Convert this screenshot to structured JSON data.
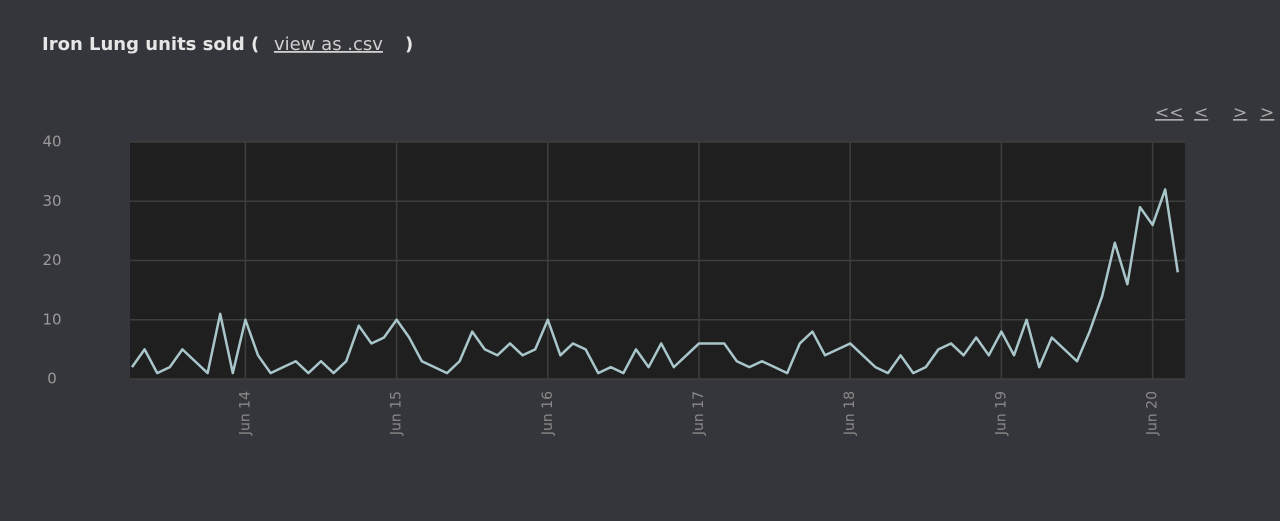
{
  "chart_data": {
    "type": "line",
    "title": "Iron Lung units sold (",
    "title_link": "view as .csv",
    "title_end": ")",
    "nav": [
      "<<",
      "<",
      ">",
      ">"
    ],
    "categories": [
      null,
      null,
      null,
      null,
      null,
      null,
      null,
      null,
      null,
      "Jun 14",
      null,
      null,
      null,
      null,
      null,
      null,
      null,
      null,
      null,
      null,
      null,
      "Jun 15",
      null,
      null,
      null,
      null,
      null,
      null,
      null,
      null,
      null,
      null,
      null,
      "Jun 16",
      null,
      null,
      null,
      null,
      null,
      null,
      null,
      null,
      null,
      null,
      null,
      "Jun 17",
      null,
      null,
      null,
      null,
      null,
      null,
      null,
      null,
      null,
      null,
      null,
      "Jun 18",
      null,
      null,
      null,
      null,
      null,
      null,
      null,
      null,
      null,
      null,
      null,
      "Jun 19",
      null,
      null,
      null,
      null,
      null,
      null,
      null,
      null,
      null,
      null,
      null,
      "Jun 20",
      null,
      null
    ],
    "series": [
      {
        "name": "units sold",
        "color": "#a9c6cb",
        "values": [
          2,
          5,
          1,
          2,
          5,
          3,
          1,
          11,
          1,
          10,
          4,
          1,
          2,
          3,
          1,
          3,
          1,
          3,
          9,
          6,
          7,
          10,
          7,
          3,
          2,
          1,
          3,
          8,
          5,
          4,
          6,
          4,
          5,
          10,
          4,
          6,
          5,
          1,
          2,
          1,
          5,
          2,
          6,
          2,
          4,
          6,
          6,
          6,
          3,
          2,
          3,
          2,
          1,
          6,
          8,
          4,
          5,
          6,
          4,
          2,
          1,
          4,
          1,
          2,
          5,
          6,
          4,
          7,
          4,
          8,
          4,
          10,
          2,
          7,
          5,
          3,
          8,
          14,
          23,
          16,
          29,
          26,
          32,
          18
        ]
      }
    ],
    "ylim": [
      0,
      40
    ],
    "yticks": [
      0,
      10,
      20,
      30,
      40
    ],
    "grid": true
  }
}
